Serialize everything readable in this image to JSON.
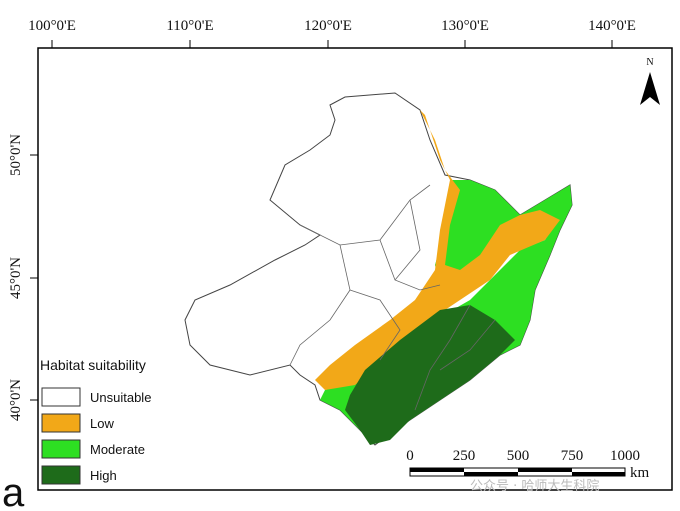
{
  "map": {
    "longitude_labels": [
      "100°0'E",
      "110°0'E",
      "120°0'E",
      "130°0'E",
      "140°0'E"
    ],
    "latitude_labels": [
      "50°0'N",
      "45°0'N",
      "40°0'N"
    ],
    "north": "N",
    "legend": {
      "title": "Habitat suitability",
      "items": [
        "Unsuitable",
        "Low",
        "Moderate",
        "High"
      ]
    },
    "scale_bar": {
      "labels": [
        "0",
        "250",
        "500",
        "750",
        "1000"
      ],
      "unit": "km"
    },
    "panel_label": "a",
    "watermark": "公众号 · 哈师大生科院"
  }
}
